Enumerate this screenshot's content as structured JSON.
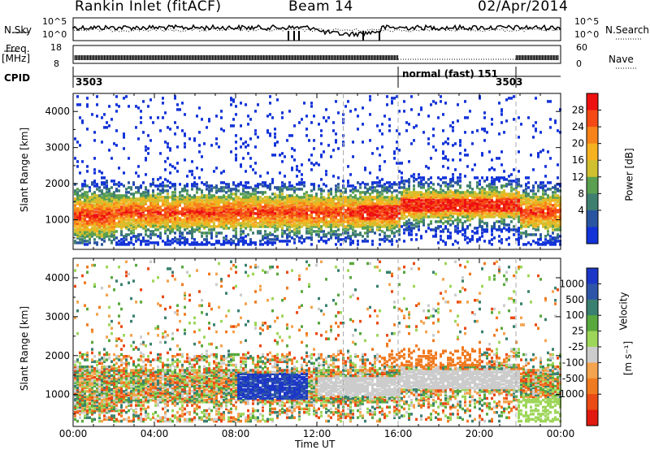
{
  "header": {
    "station": "Rankin Inlet (fitACF)",
    "beam": "Beam 14",
    "date": "02/Apr/2014"
  },
  "status_panel": {
    "nsky_label": "N.Sky",
    "nsky_ticks": [
      "10^5",
      "10^0"
    ],
    "nsearch_label": "N.Search",
    "nsearch_ticks": [
      "10^5",
      "10^0"
    ],
    "freq_label": "Freq.",
    "freq_unit": "[MHz]",
    "freq_ticks": [
      "18",
      "8"
    ],
    "nave_label": "Nave",
    "nave_ticks": [
      "60",
      "0"
    ],
    "cpid_label": "CPID",
    "cpid_segments": [
      {
        "label": "3503"
      },
      {
        "label": "normal (fast) 151"
      },
      {
        "label": "3503"
      }
    ]
  },
  "chart_data": [
    {
      "type": "heatmap",
      "panel": "power",
      "ylabel": "Slant Range [km]",
      "yticks": [
        1000,
        2000,
        3000,
        4000
      ],
      "ylim": [
        180,
        4500
      ],
      "xlim": [
        0,
        24
      ],
      "colorbar_label": "Power [dB]",
      "colorbar_ticks": [
        "28",
        "24",
        "20",
        "16",
        "12",
        "8",
        "4"
      ],
      "colorbar_colors": [
        "#ee1111",
        "#f54a16",
        "#f7831a",
        "#f7b21f",
        "#d0c030",
        "#5aa050",
        "#3f7f70",
        "#2a55a0",
        "#1233d8"
      ]
    },
    {
      "type": "heatmap",
      "panel": "velocity",
      "ylabel": "Slant Range [km]",
      "yticks": [
        1000,
        2000,
        3000,
        4000
      ],
      "ylim": [
        180,
        4500
      ],
      "xlim": [
        0,
        24
      ],
      "xlabel": "Time UT",
      "xticks": [
        "00:00",
        "04:00",
        "08:00",
        "12:00",
        "16:00",
        "20:00",
        "00:00"
      ],
      "colorbar_label": "Velocity",
      "colorbar_unit": "[m s⁻¹]",
      "colorbar_ticks": [
        "1000",
        "500",
        "100",
        "25",
        "-25",
        "-100",
        "-500",
        "-1000"
      ],
      "colorbar_colors": [
        "#1c36c8",
        "#2e55a8",
        "#3a8070",
        "#59a83e",
        "#9ed65a",
        "#cccccc",
        "#f4a34e",
        "#f07a20",
        "#ea4a14",
        "#e01a10"
      ]
    }
  ]
}
